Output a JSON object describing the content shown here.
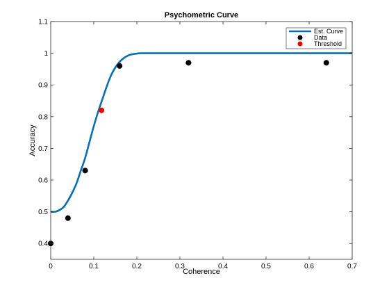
{
  "chart_data": {
    "type": "line",
    "title": "Psychometric Curve",
    "xlabel": "Coherence",
    "ylabel": "Accuracy",
    "xlim": [
      0,
      0.7
    ],
    "ylim": [
      0.35,
      1.1
    ],
    "xticks": [
      0,
      0.1,
      0.2,
      0.3,
      0.4,
      0.5,
      0.6,
      0.7
    ],
    "xtick_labels": [
      "0",
      "0.1",
      "0.2",
      "0.3",
      "0.4",
      "0.5",
      "0.6",
      "0.7"
    ],
    "yticks": [
      0.4,
      0.5,
      0.6,
      0.7,
      0.8,
      0.9,
      1.0,
      1.1
    ],
    "ytick_labels": [
      "0.4",
      "0.5",
      "0.6",
      "0.7",
      "0.8",
      "0.9",
      "1",
      "1.1"
    ],
    "grid": false,
    "legend_position": "top-right",
    "series": [
      {
        "name": "Est. Curve",
        "kind": "line",
        "color": "#0072bd",
        "x": [
          0,
          0.01,
          0.02,
          0.03,
          0.04,
          0.05,
          0.06,
          0.07,
          0.08,
          0.09,
          0.1,
          0.11,
          0.12,
          0.13,
          0.14,
          0.15,
          0.16,
          0.17,
          0.18,
          0.19,
          0.2,
          0.21,
          0.22,
          0.25,
          0.3,
          0.4,
          0.5,
          0.6,
          0.7
        ],
        "y": [
          0.5,
          0.5,
          0.505,
          0.515,
          0.535,
          0.56,
          0.59,
          0.63,
          0.67,
          0.72,
          0.77,
          0.815,
          0.855,
          0.895,
          0.93,
          0.955,
          0.973,
          0.985,
          0.993,
          0.997,
          0.999,
          1.0,
          1.0,
          1.0,
          1.0,
          1.0,
          1.0,
          1.0,
          1.0
        ]
      },
      {
        "name": "Data",
        "kind": "scatter",
        "color": "#000000",
        "x": [
          0,
          0.04,
          0.08,
          0.16,
          0.32,
          0.64
        ],
        "y": [
          0.4,
          0.48,
          0.63,
          0.96,
          0.97,
          0.97
        ]
      },
      {
        "name": "Threshold",
        "kind": "scatter",
        "color": "#ff0000",
        "x": [
          0.118
        ],
        "y": [
          0.82
        ]
      }
    ]
  }
}
